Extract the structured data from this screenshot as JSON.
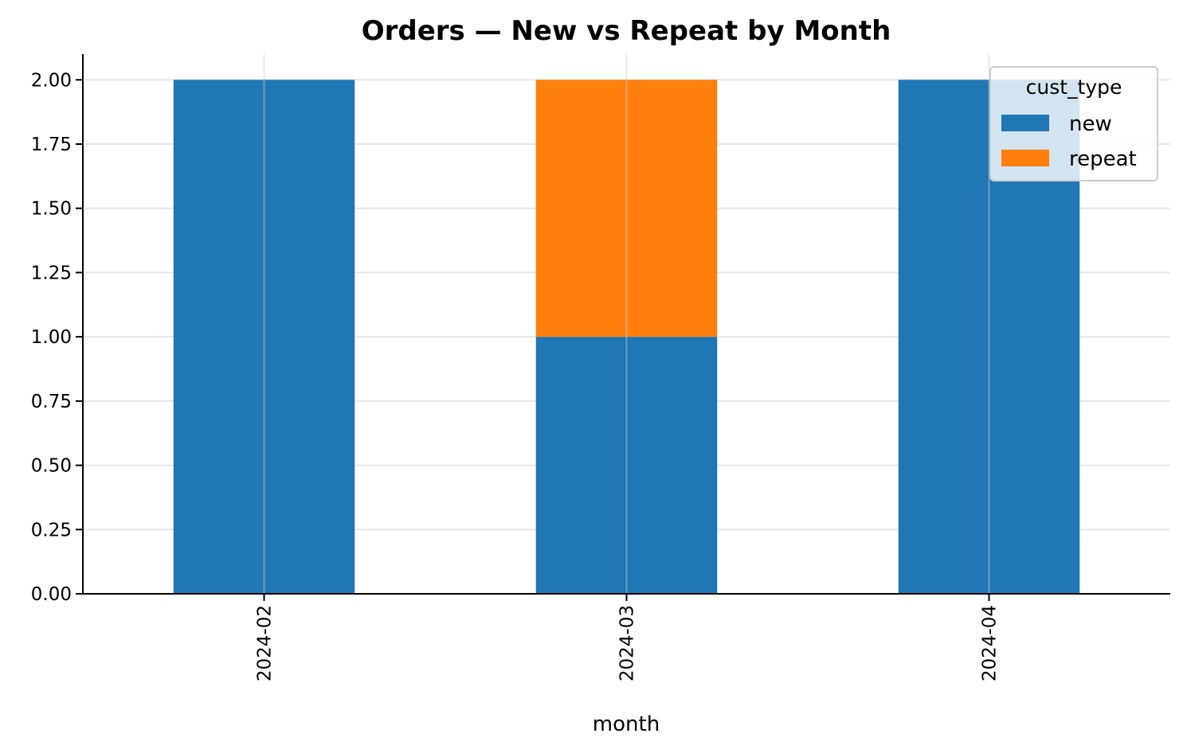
{
  "chart_data": {
    "type": "bar",
    "stacked": true,
    "title": "Orders — New vs Repeat by Month",
    "xlabel": "month",
    "ylabel": "",
    "categories": [
      "2024-02",
      "2024-03",
      "2024-04"
    ],
    "series": [
      {
        "name": "new",
        "values": [
          2,
          1,
          2
        ],
        "color": "#1f77b4"
      },
      {
        "name": "repeat",
        "values": [
          0,
          1,
          0
        ],
        "color": "#ff7f0e"
      }
    ],
    "ylim": [
      0,
      2.1
    ],
    "yticks": [
      "0.00",
      "0.25",
      "0.50",
      "0.75",
      "1.00",
      "1.25",
      "1.50",
      "1.75",
      "2.00"
    ],
    "grid": true,
    "legend": {
      "title": "cust_type",
      "placement": "top-right"
    }
  }
}
